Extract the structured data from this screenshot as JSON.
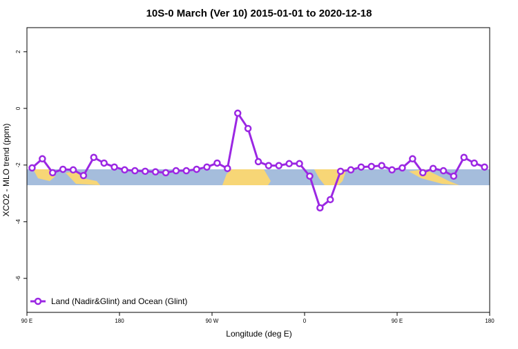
{
  "chart_data": {
    "type": "line",
    "title": "10S-0 March (Ver 10)   2015-01-01 to 2020-12-18",
    "x_label": "Longitude (deg E)",
    "y_label": "XCO2 - MLO trend (ppm)",
    "x": [
      95,
      105,
      115,
      125,
      135,
      145,
      155,
      165,
      175,
      185,
      195,
      205,
      215,
      225,
      235,
      245,
      255,
      265,
      275,
      285,
      295,
      305,
      315,
      325,
      335,
      345,
      355,
      365,
      375,
      385,
      395,
      405,
      415,
      425,
      435,
      445,
      455,
      465,
      475,
      485,
      495,
      505,
      515,
      525,
      535
    ],
    "series": [
      {
        "name": "Land (Nadir&Glint) and Ocean (Glint)",
        "color": "#9b27e3",
        "values": [
          -2.1,
          -1.78,
          -2.27,
          -2.15,
          -2.17,
          -2.37,
          -1.73,
          -1.93,
          -2.07,
          -2.17,
          -2.2,
          -2.22,
          -2.24,
          -2.27,
          -2.2,
          -2.2,
          -2.15,
          -2.07,
          -1.93,
          -2.12,
          -0.17,
          -0.71,
          -1.88,
          -2.02,
          -2.02,
          -1.95,
          -1.95,
          -2.39,
          -3.51,
          -3.22,
          -2.22,
          -2.17,
          -2.07,
          -2.05,
          -2.02,
          -2.17,
          -2.1,
          -1.78,
          -2.27,
          -2.12,
          -2.2,
          -2.39,
          -1.73,
          -1.93,
          -2.07
        ]
      }
    ],
    "xlim": [
      90,
      540
    ],
    "ylim": [
      -7.2,
      2.85
    ],
    "xticks": [
      {
        "value": 90,
        "label": "90 E"
      },
      180,
      {
        "value": 270,
        "label": "90 W"
      },
      {
        "value": 360,
        "label": "0"
      },
      {
        "value": 450,
        "label": "90 E"
      },
      {
        "value": 540,
        "label": "180"
      }
    ],
    "yticks": [
      2,
      0,
      -2,
      -4,
      -6
    ],
    "legend": "bottom-left"
  }
}
